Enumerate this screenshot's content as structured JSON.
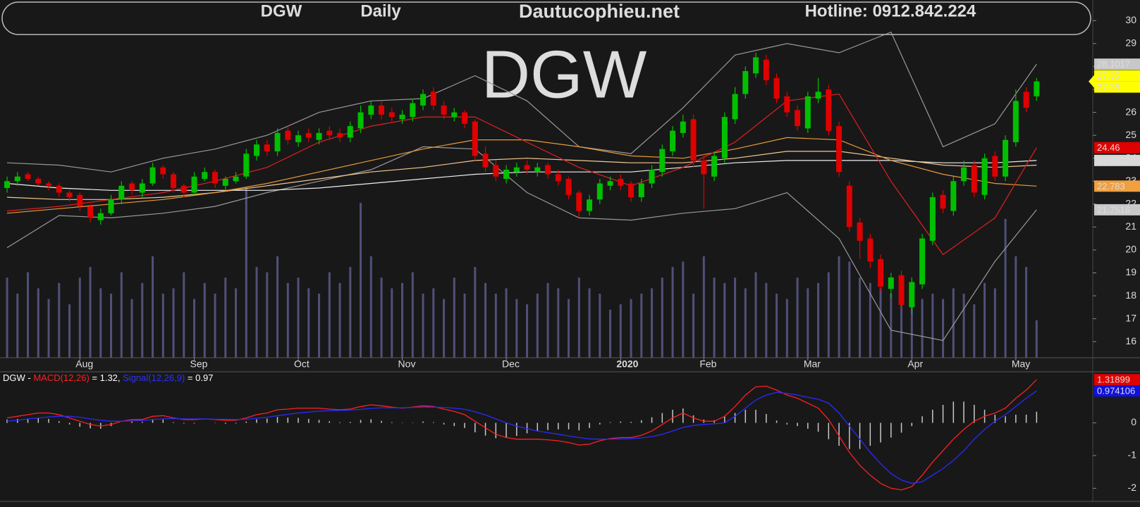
{
  "header": {
    "symbol": "DGW",
    "period": "Daily",
    "site": "Dautucophieu.net",
    "hotline": "Hotline: 0912.842.224"
  },
  "chart_data": [
    {
      "type": "candlestick",
      "watermark": "DGW",
      "open": [
        22.7,
        23.0,
        23.3,
        23.1,
        22.9,
        22.8,
        22.5,
        22.4,
        21.9,
        21.3,
        21.6,
        22.2,
        22.9,
        22.5,
        22.9,
        23.6,
        23.3,
        22.8,
        22.5,
        23.1,
        23.4,
        22.8,
        23.0,
        23.2,
        24.1,
        24.6,
        24.3,
        25.2,
        24.7,
        25.1,
        24.8,
        25.2,
        25.1,
        24.9,
        25.3,
        25.9,
        26.3,
        26.0,
        25.7,
        25.8,
        26.3,
        26.9,
        26.3,
        25.8,
        26.0,
        25.6,
        24.2,
        23.7,
        23.1,
        23.4,
        23.7,
        23.4,
        23.7,
        23.3,
        23.1,
        22.5,
        21.7,
        22.2,
        22.8,
        23.1,
        22.9,
        22.3,
        22.9,
        23.4,
        24.3,
        25.1,
        25.7,
        23.9,
        23.2,
        24.0,
        25.7,
        26.8,
        27.7,
        28.3,
        27.5,
        26.7,
        26.1,
        25.3,
        26.6,
        27.0,
        25.4,
        22.8,
        21.2,
        20.5,
        19.6,
        18.3,
        18.9,
        17.5,
        18.5,
        20.4,
        22.4,
        21.7,
        23.0,
        23.7,
        22.4,
        24.1,
        23.2,
        24.7,
        26.9,
        26.7
      ],
      "high": [
        23.2,
        23.4,
        23.4,
        23.2,
        23.0,
        22.9,
        22.6,
        22.5,
        22.0,
        21.8,
        22.4,
        23.0,
        23.0,
        23.1,
        23.8,
        23.7,
        23.4,
        22.9,
        23.4,
        23.6,
        23.5,
        23.2,
        23.4,
        24.4,
        24.8,
        24.8,
        25.3,
        25.4,
        25.2,
        25.3,
        25.3,
        25.4,
        25.3,
        25.6,
        26.3,
        26.5,
        26.5,
        26.2,
        26.1,
        26.6,
        27.0,
        27.1,
        26.5,
        26.2,
        26.1,
        25.7,
        24.5,
        23.9,
        23.7,
        23.8,
        23.9,
        23.8,
        23.8,
        23.5,
        23.2,
        22.6,
        22.4,
        23.1,
        23.2,
        23.3,
        23.0,
        23.1,
        23.7,
        24.6,
        25.4,
        25.9,
        25.9,
        24.2,
        24.3,
        26.0,
        27.1,
        28.0,
        28.6,
        28.5,
        27.7,
        26.9,
        26.3,
        26.9,
        27.5,
        27.2,
        25.6,
        23.0,
        21.4,
        20.7,
        19.8,
        19.0,
        19.1,
        18.8,
        20.7,
        22.5,
        22.6,
        23.2,
        23.9,
        23.9,
        24.2,
        24.3,
        25.0,
        27.0,
        27.1,
        27.5
      ],
      "low": [
        22.5,
        22.8,
        23.0,
        22.8,
        22.6,
        22.3,
        22.1,
        21.7,
        21.2,
        21.1,
        21.5,
        22.0,
        22.4,
        22.3,
        22.8,
        23.1,
        22.5,
        22.3,
        22.4,
        23.0,
        22.7,
        22.6,
        22.9,
        23.1,
        23.9,
        24.1,
        24.1,
        24.6,
        24.5,
        24.7,
        24.6,
        24.8,
        24.7,
        24.7,
        25.1,
        25.7,
        25.7,
        25.6,
        25.5,
        25.6,
        26.1,
        26.1,
        25.7,
        25.6,
        25.3,
        23.9,
        23.4,
        23.0,
        22.9,
        23.2,
        23.3,
        23.2,
        23.1,
        22.8,
        22.2,
        21.4,
        21.5,
        22.0,
        22.6,
        22.6,
        22.1,
        22.1,
        22.7,
        23.2,
        24.1,
        24.9,
        23.6,
        21.8,
        23.0,
        23.8,
        25.5,
        26.6,
        27.5,
        27.2,
        26.4,
        25.8,
        25.2,
        25.1,
        26.4,
        25.0,
        23.2,
        20.8,
        19.6,
        19.2,
        18.2,
        17.9,
        17.4,
        17.2,
        18.3,
        20.2,
        21.6,
        21.5,
        22.8,
        22.3,
        22.2,
        23.0,
        23.0,
        24.5,
        26.0,
        26.5
      ],
      "close": [
        23.0,
        23.2,
        23.1,
        22.9,
        22.8,
        22.5,
        22.3,
        21.9,
        21.4,
        21.6,
        22.2,
        22.8,
        22.6,
        22.9,
        23.6,
        23.3,
        22.7,
        22.5,
        23.2,
        23.4,
        22.9,
        23.1,
        23.2,
        24.2,
        24.6,
        24.3,
        25.1,
        24.8,
        25.0,
        24.9,
        25.1,
        25.0,
        24.9,
        25.4,
        26.0,
        26.3,
        25.9,
        25.8,
        25.9,
        26.4,
        26.8,
        26.3,
        25.9,
        26.0,
        25.5,
        24.1,
        23.6,
        23.2,
        23.5,
        23.6,
        23.5,
        23.6,
        23.3,
        23.0,
        22.4,
        21.7,
        22.2,
        22.9,
        23.0,
        22.8,
        22.3,
        22.9,
        23.5,
        24.4,
        25.2,
        25.6,
        23.9,
        23.3,
        24.1,
        25.8,
        26.8,
        27.8,
        28.4,
        27.4,
        26.6,
        26.0,
        25.4,
        26.7,
        26.9,
        25.2,
        23.4,
        21.0,
        20.4,
        19.5,
        18.4,
        18.8,
        17.6,
        18.6,
        20.5,
        22.3,
        21.8,
        23.0,
        23.6,
        22.5,
        24.0,
        23.2,
        24.8,
        26.5,
        26.2,
        27.35
      ],
      "color_up": "#00c000",
      "color_down": "#e00000",
      "last_label_fill": "#ffff00",
      "volume": [
        1500,
        1200,
        1600,
        1300,
        1100,
        1400,
        1000,
        1500,
        1700,
        1300,
        1200,
        1600,
        1100,
        1400,
        1900,
        1200,
        1300,
        1600,
        1100,
        1400,
        1200,
        1500,
        1300,
        3200,
        1700,
        1600,
        1900,
        1400,
        1500,
        1300,
        1200,
        1600,
        1400,
        1700,
        2900,
        1900,
        1500,
        1300,
        1400,
        1600,
        1200,
        1300,
        1100,
        1500,
        1200,
        1700,
        1400,
        1200,
        1300,
        1100,
        1000,
        1200,
        1400,
        1300,
        1100,
        1500,
        1300,
        1200,
        900,
        1000,
        1100,
        1200,
        1300,
        1500,
        1700,
        1800,
        1200,
        1900,
        1500,
        1400,
        1500,
        1300,
        1600,
        1400,
        1200,
        1100,
        1500,
        1300,
        1400,
        1600,
        1900,
        1800,
        1500,
        1400,
        1300,
        1200,
        1400,
        1300,
        1100,
        1200,
        1100,
        1300,
        1200,
        1000,
        1400,
        1300,
        2600,
        1900,
        1700,
        700
      ],
      "volume_color": "#50507a",
      "volume_lim": [
        0,
        6700
      ],
      "overlays": [
        {
          "color": "#999999",
          "label_fill": "#c8c8c8",
          "x": [
            0,
            5,
            10,
            15,
            20,
            25,
            30,
            35,
            40,
            45,
            50,
            55,
            60,
            65,
            70,
            75,
            80,
            85,
            90,
            95,
            99
          ],
          "values": [
            23.8,
            23.7,
            23.4,
            24.0,
            24.4,
            25.0,
            26.0,
            26.5,
            26.6,
            27.6,
            26.5,
            24.5,
            24.2,
            26.2,
            28.5,
            29.0,
            28.6,
            29.5,
            24.5,
            25.5,
            28.1017
          ]
        },
        {
          "color": "#999999",
          "label_fill": "#c8c8c8",
          "x": [
            0,
            5,
            10,
            15,
            20,
            25,
            30,
            35,
            40,
            45,
            50,
            55,
            60,
            65,
            70,
            75,
            80,
            85,
            90,
            95,
            99
          ],
          "values": [
            20.1,
            21.5,
            21.4,
            21.6,
            21.9,
            22.5,
            23.0,
            23.5,
            24.5,
            24.4,
            22.5,
            21.4,
            21.3,
            21.6,
            21.8,
            22.5,
            20.5,
            16.5,
            16.05,
            19.5,
            21.7516
          ]
        },
        {
          "color": "#f0f0f0",
          "label_fill": "#d8d8d8",
          "x": [
            0,
            5,
            10,
            15,
            20,
            25,
            30,
            35,
            40,
            45,
            50,
            55,
            60,
            65,
            70,
            75,
            80,
            85,
            90,
            95,
            99
          ],
          "values": [
            22.9,
            22.7,
            22.6,
            22.6,
            22.6,
            22.6,
            22.7,
            22.9,
            23.1,
            23.3,
            23.4,
            23.4,
            23.4,
            23.6,
            23.8,
            23.9,
            23.9,
            23.9,
            23.8,
            23.8,
            23.9022
          ]
        },
        {
          "color": "#f5c890",
          "x": [
            0,
            5,
            10,
            15,
            20,
            25,
            30,
            35,
            40,
            45,
            50,
            55,
            60,
            65,
            70,
            75,
            80,
            85,
            90,
            95,
            99
          ],
          "values": [
            22.3,
            22.2,
            22.2,
            22.3,
            22.5,
            22.8,
            23.1,
            23.4,
            23.6,
            23.9,
            24.0,
            23.9,
            23.8,
            23.8,
            24.0,
            24.3,
            24.3,
            24.0,
            23.7,
            23.6,
            23.7
          ]
        },
        {
          "color": "#e89a3a",
          "label_fill": "#f0a040",
          "x": [
            0,
            5,
            10,
            15,
            20,
            25,
            30,
            35,
            40,
            45,
            50,
            55,
            60,
            65,
            70,
            75,
            80,
            85,
            90,
            95,
            99
          ],
          "values": [
            21.6,
            21.8,
            22.0,
            22.2,
            22.5,
            22.9,
            23.4,
            23.9,
            24.4,
            24.8,
            24.8,
            24.5,
            24.1,
            24.0,
            24.4,
            24.9,
            24.8,
            23.9,
            23.3,
            22.9,
            22.783
          ]
        },
        {
          "color": "#e02020",
          "label_fill": "#e00000",
          "x": [
            0,
            5,
            10,
            15,
            20,
            25,
            30,
            35,
            40,
            45,
            50,
            55,
            60,
            65,
            70,
            75,
            80,
            85,
            90,
            95,
            99
          ],
          "values": [
            21.7,
            21.9,
            22.2,
            22.5,
            23.0,
            23.6,
            24.7,
            25.4,
            25.8,
            25.8,
            24.7,
            23.6,
            22.8,
            23.6,
            24.7,
            26.5,
            26.8,
            23.0,
            19.8,
            21.4,
            24.46
          ]
        }
      ],
      "xlim": [
        -0.68,
        104.4
      ],
      "xticks": [
        {
          "value": 7,
          "label": "Aug"
        },
        {
          "value": 18,
          "label": "Sep"
        },
        {
          "value": 28,
          "label": "Oct"
        },
        {
          "value": 38,
          "label": "Nov"
        },
        {
          "value": 48,
          "label": "Dec"
        },
        {
          "value": 59,
          "label": "2020",
          "bold": true
        },
        {
          "value": 67,
          "label": "Feb"
        },
        {
          "value": 77,
          "label": "Mar"
        },
        {
          "value": 87,
          "label": "Apr"
        },
        {
          "value": 97,
          "label": "May"
        }
      ],
      "ylim": [
        15.3,
        30.9
      ],
      "yticks": [
        16,
        17,
        18,
        19,
        20,
        21,
        22,
        23,
        24,
        25,
        26,
        27,
        28,
        29,
        30
      ]
    },
    {
      "type": "macd",
      "prefix": "DGW - ",
      "series": [
        {
          "name": "MACD(12,26)",
          "legend_value": " = 1.32, ",
          "color": "#ff2020",
          "label_fill": "#e00000",
          "values": [
            0.15,
            0.2,
            0.25,
            0.3,
            0.3,
            0.25,
            0.15,
            0.05,
            -0.05,
            -0.1,
            -0.05,
            0.05,
            0.1,
            0.1,
            0.2,
            0.22,
            0.15,
            0.1,
            0.1,
            0.12,
            0.1,
            0.08,
            0.08,
            0.15,
            0.25,
            0.3,
            0.4,
            0.42,
            0.45,
            0.45,
            0.45,
            0.42,
            0.4,
            0.42,
            0.5,
            0.55,
            0.52,
            0.48,
            0.45,
            0.48,
            0.52,
            0.5,
            0.42,
            0.35,
            0.25,
            0.05,
            -0.15,
            -0.35,
            -0.45,
            -0.5,
            -0.5,
            -0.5,
            -0.52,
            -0.55,
            -0.6,
            -0.68,
            -0.65,
            -0.55,
            -0.48,
            -0.45,
            -0.45,
            -0.38,
            -0.25,
            -0.05,
            0.15,
            0.3,
            0.15,
            0.05,
            0.05,
            0.2,
            0.5,
            0.85,
            1.1,
            1.12,
            1.0,
            0.85,
            0.75,
            0.6,
            0.45,
            0.1,
            -0.4,
            -0.9,
            -1.3,
            -1.6,
            -1.85,
            -2.0,
            -2.05,
            -1.95,
            -1.6,
            -1.2,
            -0.85,
            -0.5,
            -0.2,
            0.05,
            0.2,
            0.3,
            0.45,
            0.75,
            1.0,
            1.31899
          ]
        },
        {
          "name": "Signal(12,26,9)",
          "legend_value": " = 0.97",
          "color": "#2a2aff",
          "label_fill": "#1010e0",
          "values": [
            0.05,
            0.08,
            0.12,
            0.15,
            0.18,
            0.2,
            0.2,
            0.17,
            0.12,
            0.08,
            0.05,
            0.05,
            0.06,
            0.07,
            0.1,
            0.12,
            0.13,
            0.12,
            0.12,
            0.12,
            0.11,
            0.11,
            0.1,
            0.11,
            0.14,
            0.17,
            0.22,
            0.26,
            0.3,
            0.33,
            0.36,
            0.37,
            0.38,
            0.39,
            0.41,
            0.44,
            0.46,
            0.46,
            0.46,
            0.47,
            0.48,
            0.48,
            0.47,
            0.45,
            0.41,
            0.34,
            0.24,
            0.12,
            0.0,
            -0.1,
            -0.18,
            -0.25,
            -0.3,
            -0.35,
            -0.4,
            -0.45,
            -0.49,
            -0.5,
            -0.5,
            -0.49,
            -0.48,
            -0.46,
            -0.42,
            -0.35,
            -0.25,
            -0.14,
            -0.08,
            -0.05,
            -0.03,
            0.0,
            0.2,
            0.45,
            0.7,
            0.85,
            0.93,
            0.9,
            0.85,
            0.78,
            0.72,
            0.6,
            0.3,
            -0.1,
            -0.5,
            -0.9,
            -1.25,
            -1.55,
            -1.75,
            -1.85,
            -1.8,
            -1.6,
            -1.4,
            -1.15,
            -0.85,
            -0.5,
            -0.2,
            0.05,
            0.25,
            0.5,
            0.75,
            0.974106
          ]
        }
      ],
      "histogram": [
        0.1,
        0.12,
        0.13,
        0.15,
        0.12,
        0.05,
        -0.05,
        -0.12,
        -0.17,
        -0.18,
        -0.1,
        0,
        0.04,
        0.03,
        0.1,
        0.1,
        0.02,
        -0.02,
        -0.02,
        0,
        -0.01,
        -0.03,
        -0.02,
        0.04,
        0.11,
        0.13,
        0.18,
        0.16,
        0.15,
        0.12,
        0.09,
        0.05,
        0.02,
        0.03,
        0.09,
        0.11,
        0.06,
        0.02,
        -0.01,
        0.01,
        0.04,
        0.02,
        -0.05,
        -0.1,
        -0.16,
        -0.29,
        -0.39,
        -0.47,
        -0.45,
        -0.4,
        -0.32,
        -0.25,
        -0.22,
        -0.2,
        -0.2,
        -0.23,
        -0.16,
        -0.05,
        0.02,
        0.04,
        0.03,
        0.08,
        0.17,
        0.3,
        0.4,
        0.44,
        0.23,
        0.1,
        0.08,
        0.2,
        0.3,
        0.4,
        0.4,
        0.27,
        0.07,
        -0.05,
        -0.1,
        -0.18,
        -0.27,
        -0.5,
        -0.7,
        -0.8,
        -0.8,
        -0.7,
        -0.6,
        -0.45,
        -0.3,
        -0.1,
        0.2,
        0.4,
        0.55,
        0.65,
        0.65,
        0.55,
        0.4,
        0.25,
        0.2,
        0.25,
        0.25,
        0.34
      ],
      "histogram_color": "#c8c8c8",
      "xlim": [
        -0.68,
        104.4
      ],
      "ylim": [
        -2.4,
        1.56
      ],
      "yticks": [
        -2,
        -1,
        0
      ]
    }
  ]
}
